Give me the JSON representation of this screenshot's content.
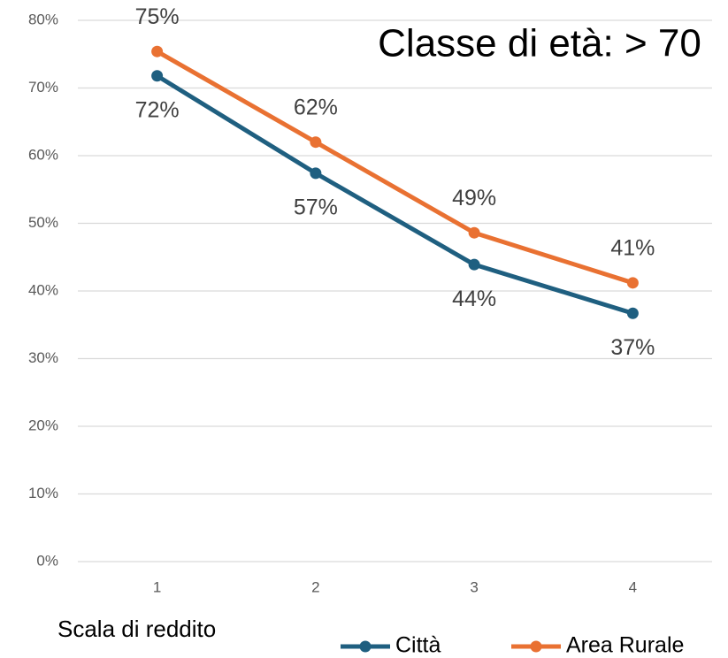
{
  "chart_data": {
    "type": "line",
    "title": "Classe di età: > 70",
    "x_label": "Scala di reddito",
    "categories": [
      "1",
      "2",
      "3",
      "4"
    ],
    "series": [
      {
        "name": "Città",
        "color": "#1f5f80",
        "values": [
          71.8,
          57.4,
          43.9,
          36.7
        ],
        "value_labels": [
          "72%",
          "57%",
          "44%",
          "37%"
        ]
      },
      {
        "name": "Area Rurale",
        "color": "#e97132",
        "values": [
          75.4,
          62.0,
          48.6,
          41.2
        ],
        "value_labels": [
          "75%",
          "62%",
          "49%",
          "41%"
        ]
      }
    ],
    "ylim": [
      0,
      80
    ],
    "yticks": [
      {
        "value": 0,
        "label": "0%"
      },
      {
        "value": 10,
        "label": "10%"
      },
      {
        "value": 20,
        "label": "20%"
      },
      {
        "value": 30,
        "label": "30%"
      },
      {
        "value": 40,
        "label": "40%"
      },
      {
        "value": 50,
        "label": "50%"
      },
      {
        "value": 60,
        "label": "60%"
      },
      {
        "value": 70,
        "label": "70%"
      },
      {
        "value": 80,
        "label": "80%"
      }
    ],
    "grid": true,
    "legend": "bottom"
  }
}
